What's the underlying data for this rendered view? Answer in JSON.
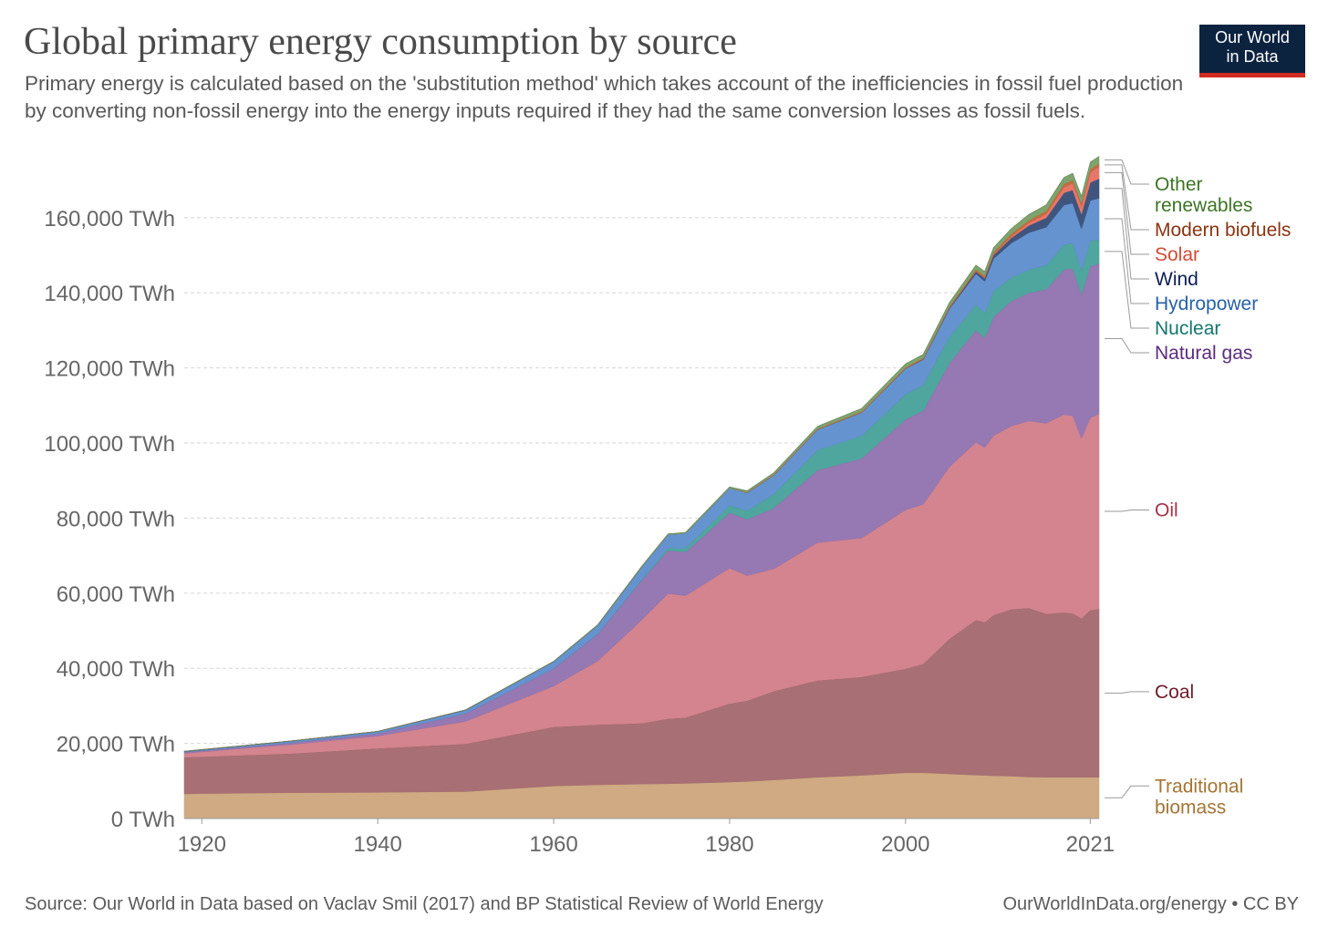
{
  "header": {
    "title": "Global primary energy consumption by source",
    "subtitle": "Primary energy is calculated based on the 'substitution method' which takes account of the inefficiencies in fossil fuel production by converting non-fossil energy into the energy inputs required if they had the same conversion losses as fossil fuels."
  },
  "logo": {
    "line1": "Our World",
    "line2": "in Data"
  },
  "footer": {
    "source": "Source: Our World in Data based on Vaclav Smil (2017) and BP Statistical Review of World Energy",
    "credit": "OurWorldInData.org/energy • CC BY"
  },
  "chart_data": {
    "type": "area",
    "stacked": true,
    "title": "Global primary energy consumption by source",
    "xlabel": "",
    "ylabel": "",
    "xlim": [
      1918,
      2022
    ],
    "ylim": [
      0,
      175000
    ],
    "y_ticks": [
      0,
      20000,
      40000,
      60000,
      80000,
      100000,
      120000,
      140000,
      160000
    ],
    "y_tick_labels": [
      "0 TWh",
      "20,000 TWh",
      "40,000 TWh",
      "60,000 TWh",
      "80,000 TWh",
      "100,000 TWh",
      "120,000 TWh",
      "140,000 TWh",
      "160,000 TWh"
    ],
    "x_ticks": [
      1920,
      1940,
      1960,
      1980,
      2000,
      2021
    ],
    "x_tick_labels": [
      "1920",
      "1940",
      "1960",
      "1980",
      "2000",
      "2021"
    ],
    "grid": "horizontal dashed",
    "legend": "right, labels at series ends",
    "x": [
      1918,
      1930,
      1940,
      1950,
      1960,
      1965,
      1970,
      1973,
      1975,
      1980,
      1982,
      1985,
      1990,
      1995,
      2000,
      2002,
      2005,
      2008,
      2009,
      2010,
      2012,
      2014,
      2016,
      2018,
      2019,
      2020,
      2021,
      2022
    ],
    "series": [
      {
        "name": "Traditional biomass",
        "color": "#cfaa82",
        "legend_color": "#a47534",
        "values": [
          6600,
          6900,
          7000,
          7200,
          8700,
          9000,
          9200,
          9300,
          9400,
          9700,
          9900,
          10300,
          11000,
          11500,
          12200,
          12200,
          11900,
          11600,
          11500,
          11400,
          11300,
          11100,
          11000,
          11000,
          11000,
          11000,
          11000,
          11000
        ]
      },
      {
        "name": "Coal",
        "color": "#a86f74",
        "legend_color": "#6e1a28",
        "values": [
          9700,
          10400,
          11700,
          12700,
          15700,
          16000,
          16200,
          17300,
          17500,
          20900,
          21500,
          23600,
          25800,
          26200,
          27700,
          29000,
          36000,
          41300,
          40800,
          42800,
          44400,
          45000,
          43500,
          43900,
          43600,
          42300,
          44500,
          44800
        ]
      },
      {
        "name": "Oil",
        "color": "#d4848e",
        "legend_color": "#a8324a",
        "values": [
          1100,
          2400,
          3300,
          6000,
          10900,
          17000,
          27500,
          33300,
          32500,
          36100,
          33300,
          32600,
          36700,
          37000,
          42300,
          42500,
          45800,
          47300,
          46500,
          47800,
          48800,
          49800,
          50800,
          52700,
          52700,
          48000,
          51200,
          52000
        ]
      },
      {
        "name": "Natural gas",
        "color": "#9678b3",
        "legend_color": "#5b2c81",
        "values": [
          300,
          500,
          700,
          2100,
          4700,
          7100,
          10600,
          11500,
          11600,
          14800,
          15000,
          16200,
          19300,
          21200,
          24100,
          24900,
          27600,
          29900,
          29200,
          31600,
          33300,
          34100,
          35600,
          38600,
          39200,
          38300,
          40400,
          40000
        ]
      },
      {
        "name": "Nuclear",
        "color": "#4fa69e",
        "legend_color": "#13766e",
        "values": [
          0,
          0,
          0,
          0,
          10,
          100,
          200,
          600,
          1000,
          1900,
          2300,
          3600,
          5300,
          6000,
          6700,
          6800,
          7000,
          6800,
          6700,
          6800,
          6200,
          6200,
          6400,
          6600,
          6700,
          6500,
          6700,
          6400
        ]
      },
      {
        "name": "Hydropower",
        "color": "#6593cf",
        "legend_color": "#2760a8",
        "values": [
          200,
          400,
          500,
          900,
          1800,
          2300,
          3300,
          3600,
          4000,
          4600,
          4800,
          5100,
          5500,
          6200,
          6800,
          6800,
          7500,
          8200,
          8400,
          8700,
          9200,
          9800,
          10200,
          10600,
          10700,
          11000,
          10800,
          11000
        ]
      },
      {
        "name": "Wind",
        "color": "#3f557e",
        "legend_color": "#0c1f55",
        "values": [
          0,
          0,
          0,
          0,
          0,
          0,
          0,
          0,
          0,
          0,
          0,
          0,
          10,
          20,
          80,
          140,
          250,
          580,
          750,
          920,
          1400,
          1900,
          2500,
          3200,
          3500,
          3900,
          4800,
          5200
        ]
      },
      {
        "name": "Solar",
        "color": "#e9766a",
        "legend_color": "#d34b35",
        "values": [
          0,
          0,
          0,
          0,
          0,
          0,
          0,
          0,
          0,
          0,
          0,
          0,
          0,
          0,
          5,
          10,
          20,
          60,
          100,
          150,
          420,
          690,
          1050,
          1550,
          1800,
          2100,
          2700,
          3200
        ]
      },
      {
        "name": "Modern biofuels",
        "color": "#c36c3f",
        "legend_color": "#8a3512",
        "values": [
          0,
          0,
          0,
          0,
          0,
          0,
          0,
          0,
          0,
          0,
          120,
          190,
          220,
          260,
          280,
          300,
          350,
          520,
          560,
          600,
          660,
          730,
          780,
          820,
          880,
          830,
          870,
          900
        ]
      },
      {
        "name": "Other renewables",
        "color": "#7ea46d",
        "legend_color": "#3d7425",
        "values": [
          0,
          0,
          0,
          0,
          50,
          100,
          150,
          200,
          220,
          300,
          350,
          450,
          600,
          800,
          900,
          950,
          1000,
          1100,
          1150,
          1250,
          1350,
          1500,
          1600,
          1700,
          1750,
          1750,
          1800,
          1800
        ]
      }
    ]
  }
}
